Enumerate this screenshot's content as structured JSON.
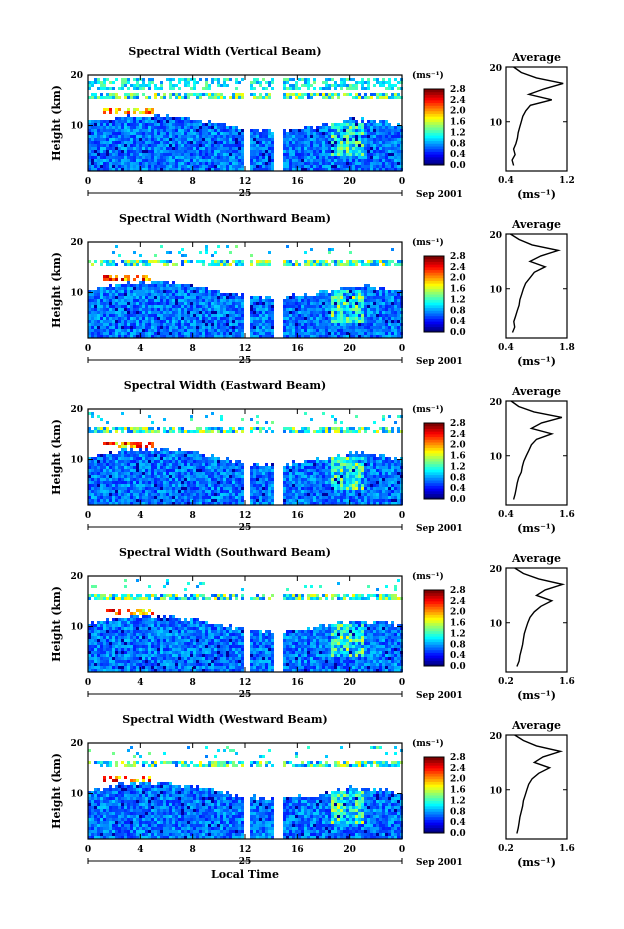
{
  "figure": {
    "bottom_xlabel": "Local Time",
    "date_label": "Sep 2001",
    "day_label": "25",
    "height_label": "Height (km)",
    "cb_unit": "(ms⁻¹)",
    "cb_ticks": [
      "0.0",
      "0.4",
      "0.8",
      "1.2",
      "1.6",
      "2.0",
      "2.4",
      "2.8"
    ],
    "avg_title": "Average",
    "avg_unit": "(ms⁻¹)"
  },
  "chart_data": [
    {
      "type": "heatmap",
      "title": "Spectral Width (Vertical Beam)",
      "x_ticks": [
        "0",
        "4",
        "8",
        "12",
        "16",
        "20",
        "0"
      ],
      "y_ticks": [
        "20",
        "10"
      ],
      "xlim": [
        0,
        24
      ],
      "ylim": [
        1,
        20
      ],
      "colorbar_range": [
        0.0,
        2.8
      ],
      "avg_profile": {
        "xlim": [
          0.4,
          1.2
        ],
        "x_ticks": [
          "0.4",
          "1.2"
        ],
        "height": [
          2,
          3,
          4,
          5,
          6,
          7,
          8,
          9,
          10,
          11,
          12,
          13,
          14,
          15,
          16,
          17,
          18,
          19,
          20
        ],
        "width": [
          0.5,
          0.48,
          0.52,
          0.5,
          0.53,
          0.55,
          0.56,
          0.58,
          0.6,
          0.62,
          0.66,
          0.72,
          1.0,
          0.7,
          0.9,
          1.15,
          0.8,
          0.6,
          0.5
        ]
      }
    },
    {
      "type": "heatmap",
      "title": "Spectral Width (Northward Beam)",
      "x_ticks": [
        "0",
        "4",
        "8",
        "12",
        "16",
        "20",
        "0"
      ],
      "y_ticks": [
        "20",
        "10"
      ],
      "xlim": [
        0,
        24
      ],
      "ylim": [
        1,
        20
      ],
      "colorbar_range": [
        0.0,
        2.8
      ],
      "avg_profile": {
        "xlim": [
          0.4,
          1.8
        ],
        "x_ticks": [
          "0.4",
          "1.8"
        ],
        "height": [
          2,
          3,
          4,
          5,
          6,
          7,
          8,
          9,
          10,
          11,
          12,
          13,
          14,
          15,
          16,
          17,
          18,
          19,
          20
        ],
        "width": [
          0.55,
          0.6,
          0.58,
          0.62,
          0.66,
          0.7,
          0.72,
          0.76,
          0.8,
          0.85,
          0.95,
          1.05,
          1.3,
          0.95,
          1.2,
          1.6,
          1.0,
          0.7,
          0.5
        ]
      }
    },
    {
      "type": "heatmap",
      "title": "Spectral Width (Eastward Beam)",
      "x_ticks": [
        "0",
        "4",
        "8",
        "12",
        "16",
        "20",
        "0"
      ],
      "y_ticks": [
        "20",
        "10"
      ],
      "xlim": [
        0,
        24
      ],
      "ylim": [
        1,
        20
      ],
      "colorbar_range": [
        0.0,
        2.8
      ],
      "avg_profile": {
        "xlim": [
          0.4,
          1.6
        ],
        "x_ticks": [
          "0.4",
          "1.6"
        ],
        "height": [
          2,
          3,
          4,
          5,
          6,
          7,
          8,
          9,
          10,
          11,
          12,
          13,
          14,
          15,
          16,
          17,
          18,
          19,
          20
        ],
        "width": [
          0.55,
          0.58,
          0.6,
          0.62,
          0.65,
          0.7,
          0.72,
          0.75,
          0.8,
          0.85,
          0.9,
          1.0,
          1.3,
          0.9,
          1.1,
          1.5,
          0.95,
          0.65,
          0.5
        ]
      }
    },
    {
      "type": "heatmap",
      "title": "Spectral Width (Southward Beam)",
      "x_ticks": [
        "0",
        "4",
        "8",
        "12",
        "16",
        "20",
        "0"
      ],
      "y_ticks": [
        "20",
        "10"
      ],
      "xlim": [
        0,
        24
      ],
      "ylim": [
        1,
        20
      ],
      "colorbar_range": [
        0.0,
        2.8
      ],
      "avg_profile": {
        "xlim": [
          0.2,
          1.6
        ],
        "x_ticks": [
          "0.2",
          "1.6"
        ],
        "height": [
          2,
          3,
          4,
          5,
          6,
          7,
          8,
          9,
          10,
          11,
          12,
          13,
          14,
          15,
          16,
          17,
          18,
          19,
          20
        ],
        "width": [
          0.45,
          0.5,
          0.52,
          0.55,
          0.58,
          0.6,
          0.62,
          0.66,
          0.7,
          0.75,
          0.85,
          1.0,
          1.25,
          0.9,
          1.1,
          1.5,
          0.95,
          0.6,
          0.4
        ]
      }
    },
    {
      "type": "heatmap",
      "title": "Spectral Width (Westward Beam)",
      "x_ticks": [
        "0",
        "4",
        "8",
        "12",
        "16",
        "20",
        "0"
      ],
      "y_ticks": [
        "20",
        "10"
      ],
      "xlim": [
        0,
        24
      ],
      "ylim": [
        1,
        20
      ],
      "colorbar_range": [
        0.0,
        2.8
      ],
      "avg_profile": {
        "xlim": [
          0.2,
          1.6
        ],
        "x_ticks": [
          "0.2",
          "1.6"
        ],
        "height": [
          2,
          3,
          4,
          5,
          6,
          7,
          8,
          9,
          10,
          11,
          12,
          13,
          14,
          15,
          16,
          17,
          18,
          19,
          20
        ],
        "width": [
          0.45,
          0.48,
          0.5,
          0.52,
          0.55,
          0.58,
          0.6,
          0.64,
          0.68,
          0.72,
          0.8,
          0.95,
          1.2,
          0.85,
          1.05,
          1.45,
          0.9,
          0.6,
          0.4
        ]
      }
    }
  ]
}
